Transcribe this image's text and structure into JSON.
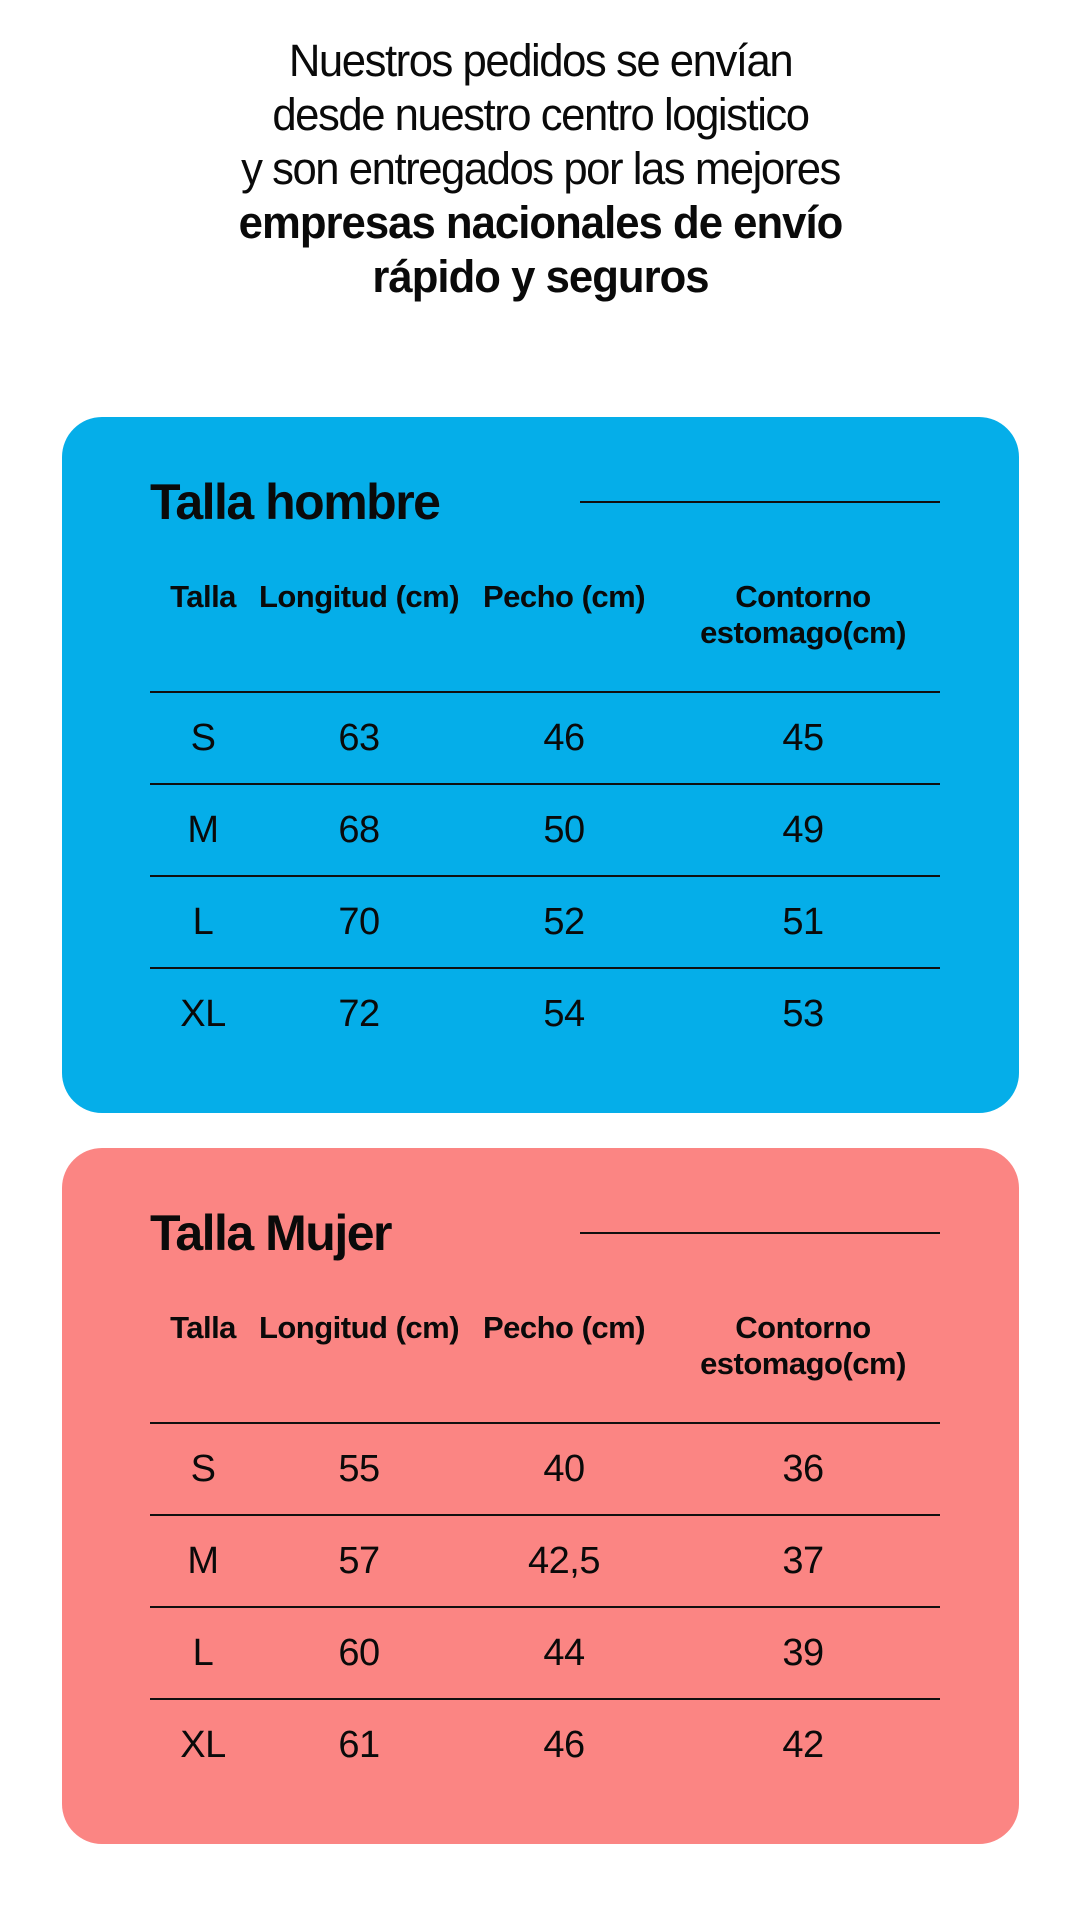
{
  "intro": {
    "line1": "Nuestros pedidos se envían",
    "line2": "desde nuestro centro logistico",
    "line3": "y son entregados por las mejores",
    "line4": "empresas nacionales de envío",
    "line5": "rápido y seguros"
  },
  "colors": {
    "men_card_bg": "#05AEE9",
    "women_card_bg": "#FB8583",
    "text": "#0a0a0a",
    "rule_line": "#101010",
    "page_bg": "#ffffff"
  },
  "men_table": {
    "title": "Talla hombre",
    "headers": [
      "Talla",
      "Longitud (cm)",
      "Pecho (cm)",
      "Contorno estomago(cm)"
    ],
    "rows": [
      [
        "S",
        "63",
        "46",
        "45"
      ],
      [
        "M",
        "68",
        "50",
        "49"
      ],
      [
        "L",
        "70",
        "52",
        "51"
      ],
      [
        "XL",
        "72",
        "54",
        "53"
      ]
    ]
  },
  "women_table": {
    "title": "Talla Mujer",
    "headers": [
      "Talla",
      "Longitud (cm)",
      "Pecho (cm)",
      "Contorno estomago(cm)"
    ],
    "rows": [
      [
        "S",
        "55",
        "40",
        "36"
      ],
      [
        "M",
        "57",
        "42,5",
        "37"
      ],
      [
        "L",
        "60",
        "44",
        "39"
      ],
      [
        "XL",
        "61",
        "46",
        "42"
      ]
    ]
  },
  "chart_data": [
    {
      "type": "table",
      "title": "Talla hombre",
      "columns": [
        "Talla",
        "Longitud (cm)",
        "Pecho (cm)",
        "Contorno estomago(cm)"
      ],
      "rows": [
        [
          "S",
          63,
          46,
          45
        ],
        [
          "M",
          68,
          50,
          49
        ],
        [
          "L",
          70,
          52,
          51
        ],
        [
          "XL",
          72,
          54,
          53
        ]
      ]
    },
    {
      "type": "table",
      "title": "Talla Mujer",
      "columns": [
        "Talla",
        "Longitud (cm)",
        "Pecho (cm)",
        "Contorno estomago(cm)"
      ],
      "rows": [
        [
          "S",
          55,
          40,
          36
        ],
        [
          "M",
          57,
          42.5,
          37
        ],
        [
          "L",
          60,
          44,
          39
        ],
        [
          "XL",
          61,
          46,
          42
        ]
      ]
    }
  ]
}
